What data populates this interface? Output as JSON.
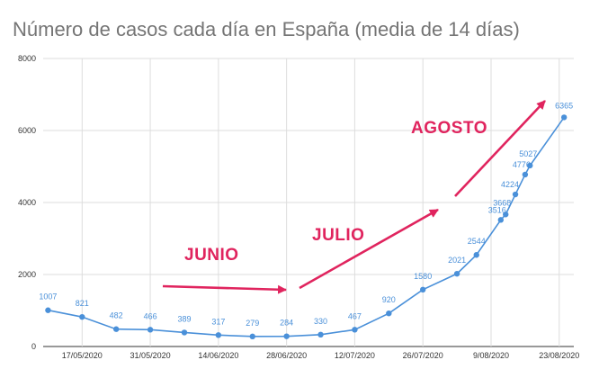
{
  "chart_data": {
    "type": "line",
    "title": "Número de casos cada día en España (media de 14 días)",
    "xlabel": "",
    "ylabel": "",
    "ylim": [
      0,
      8000
    ],
    "y_ticks": [
      "0",
      "2000",
      "4000",
      "6000",
      "8000"
    ],
    "x_tick_labels": [
      "17/05/2020",
      "31/05/2020",
      "14/06/2020",
      "28/06/2020",
      "12/07/2020",
      "26/07/2020",
      "9/08/2020",
      "23/08/2020"
    ],
    "grid": true,
    "series": [
      {
        "name": "Casos",
        "color": "#4a90d9",
        "points": [
          {
            "d": 0,
            "v": 1007,
            "label": "1007"
          },
          {
            "d": 7,
            "v": 821,
            "label": "821"
          },
          {
            "d": 14,
            "v": 482,
            "label": "482"
          },
          {
            "d": 21,
            "v": 466,
            "label": "466"
          },
          {
            "d": 28,
            "v": 389,
            "label": "389"
          },
          {
            "d": 35,
            "v": 317,
            "label": "317"
          },
          {
            "d": 42,
            "v": 279,
            "label": "279"
          },
          {
            "d": 49,
            "v": 284,
            "label": "284"
          },
          {
            "d": 56,
            "v": 330,
            "label": "330"
          },
          {
            "d": 63,
            "v": 467,
            "label": "467"
          },
          {
            "d": 70,
            "v": 920,
            "label": "920"
          },
          {
            "d": 77,
            "v": 1580,
            "label": "1580"
          },
          {
            "d": 84,
            "v": 2021,
            "label": "2021"
          },
          {
            "d": 88,
            "v": 2544,
            "label": "2544"
          },
          {
            "d": 93,
            "v": 3516,
            "label": "3516"
          },
          {
            "d": 94,
            "v": 3668,
            "label": "3668"
          },
          {
            "d": 96,
            "v": 4224,
            "label": "4224"
          },
          {
            "d": 98,
            "v": 4776,
            "label": "4776"
          },
          {
            "d": 99,
            "v": 5027,
            "label": "5027"
          },
          {
            "d": 106,
            "v": 6365,
            "label": "6365"
          }
        ]
      }
    ],
    "annotations": [
      {
        "text": "JUNIO",
        "color": "#e0245e"
      },
      {
        "text": "JULIO",
        "color": "#e0245e"
      },
      {
        "text": "AGOSTO",
        "color": "#e0245e"
      }
    ]
  }
}
